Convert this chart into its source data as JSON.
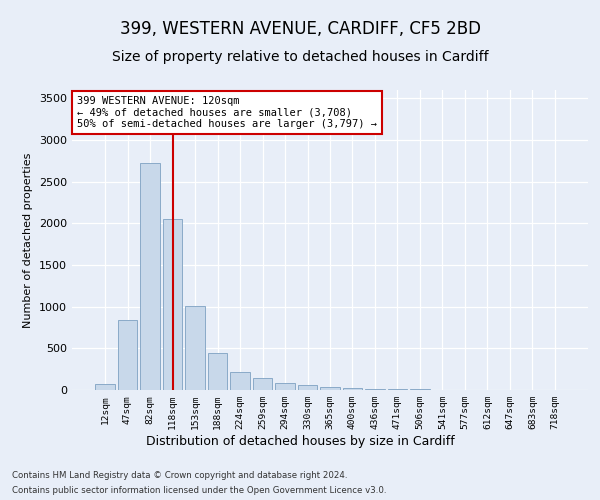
{
  "title1": "399, WESTERN AVENUE, CARDIFF, CF5 2BD",
  "title2": "Size of property relative to detached houses in Cardiff",
  "xlabel": "Distribution of detached houses by size in Cardiff",
  "ylabel": "Number of detached properties",
  "categories": [
    "12sqm",
    "47sqm",
    "82sqm",
    "118sqm",
    "153sqm",
    "188sqm",
    "224sqm",
    "259sqm",
    "294sqm",
    "330sqm",
    "365sqm",
    "400sqm",
    "436sqm",
    "471sqm",
    "506sqm",
    "541sqm",
    "577sqm",
    "612sqm",
    "647sqm",
    "683sqm",
    "718sqm"
  ],
  "values": [
    75,
    840,
    2720,
    2050,
    1010,
    440,
    215,
    145,
    80,
    55,
    35,
    20,
    15,
    10,
    7,
    5,
    4,
    3,
    2,
    2,
    1
  ],
  "bar_color": "#c8d8ea",
  "bar_edge_color": "#8aaac8",
  "vline_x_index": 3,
  "vline_color": "#cc0000",
  "annotation_line1": "399 WESTERN AVENUE: 120sqm",
  "annotation_line2": "← 49% of detached houses are smaller (3,708)",
  "annotation_line3": "50% of semi-detached houses are larger (3,797) →",
  "annotation_box_color": "#ffffff",
  "annotation_box_edge": "#cc0000",
  "ylim_max": 3600,
  "yticks": [
    0,
    500,
    1000,
    1500,
    2000,
    2500,
    3000,
    3500
  ],
  "footer1": "Contains HM Land Registry data © Crown copyright and database right 2024.",
  "footer2": "Contains public sector information licensed under the Open Government Licence v3.0.",
  "bg_color": "#e8eef8",
  "title1_fontsize": 12,
  "title2_fontsize": 10
}
